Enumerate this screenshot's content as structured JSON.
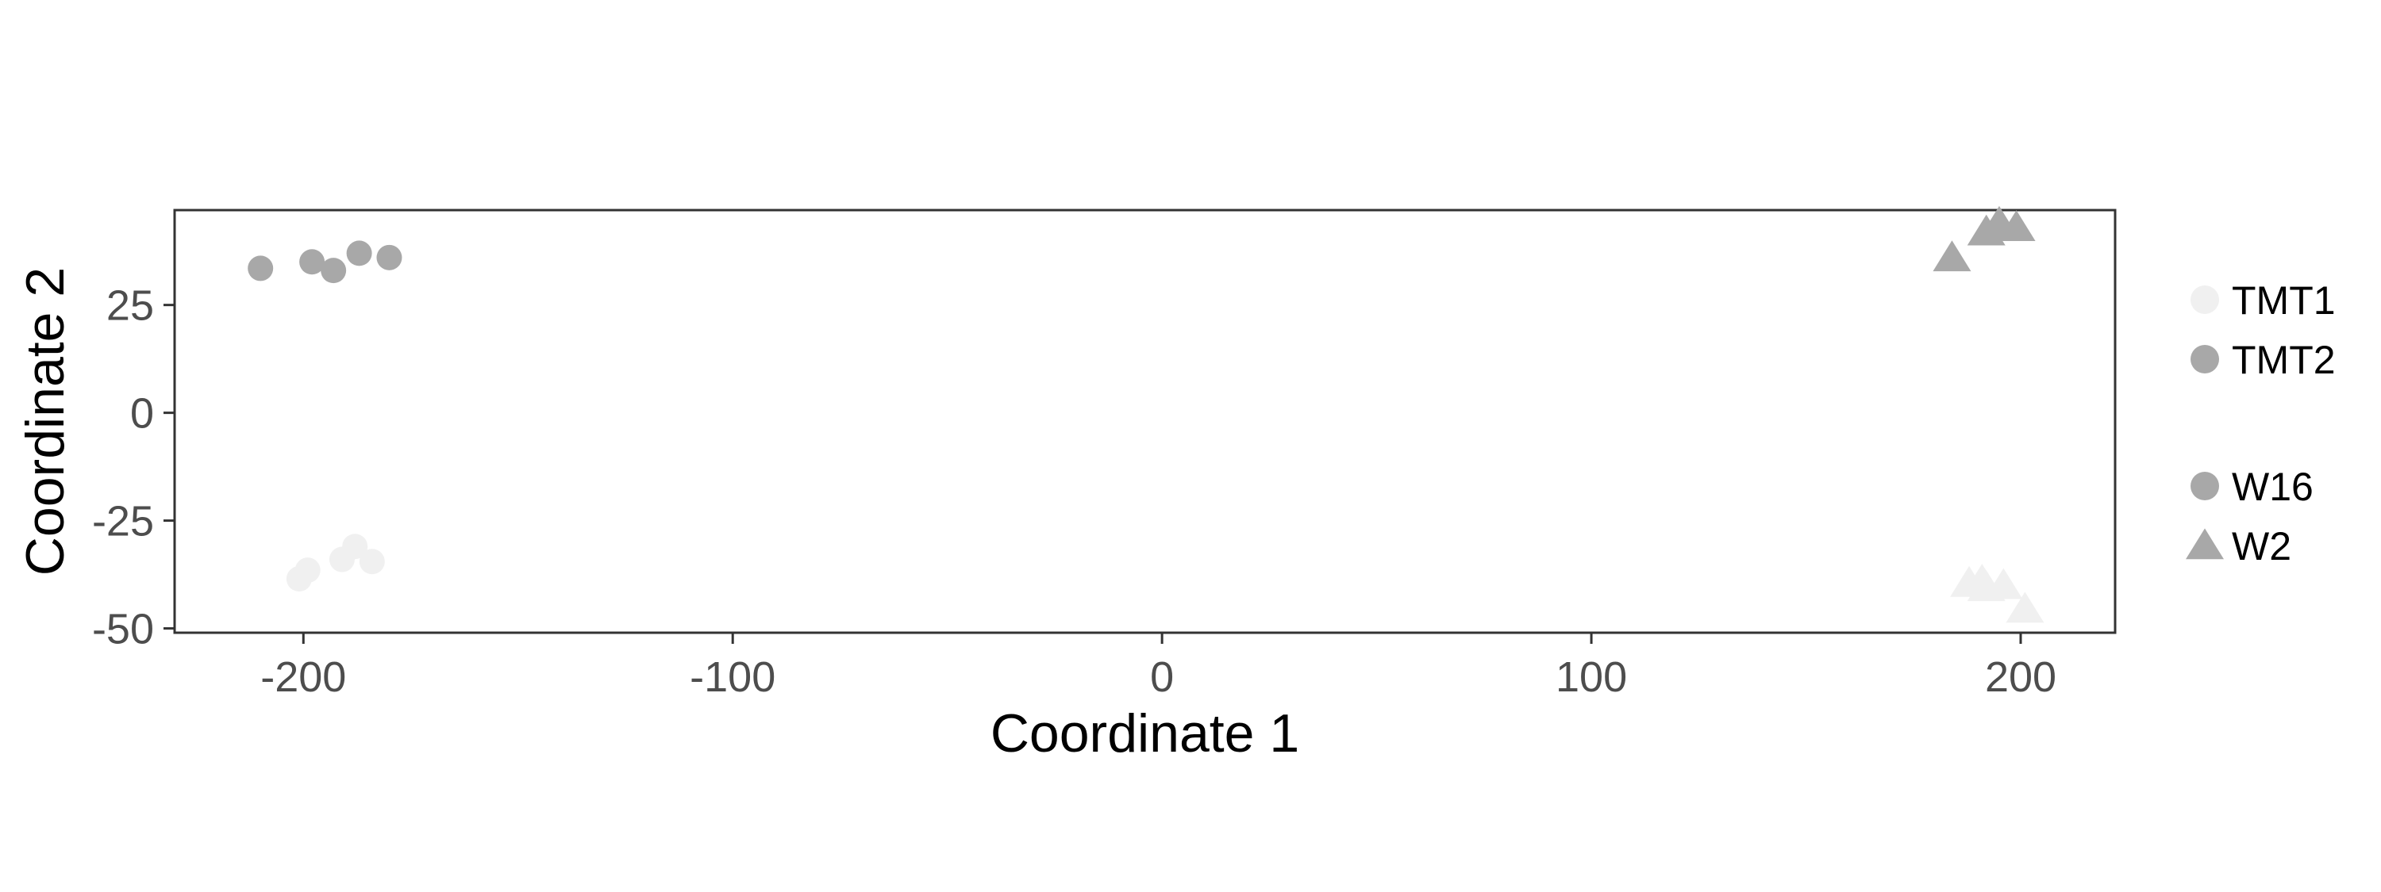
{
  "chart_data": {
    "type": "scatter",
    "title": "",
    "xlabel": "Coordinate 1",
    "ylabel": "Coordinate 2",
    "xlim": [
      -230,
      222
    ],
    "ylim": [
      -51,
      47
    ],
    "x_ticks": [
      -200,
      -100,
      0,
      100,
      200
    ],
    "y_ticks": [
      25,
      0,
      -25,
      -50
    ],
    "x_tick_labels": [
      "-200",
      "-100",
      "0",
      "100",
      "200"
    ],
    "y_tick_labels": [
      "25",
      "0",
      "-25",
      "-50"
    ],
    "grid": false,
    "legend_placement": "right",
    "color_legend": {
      "entries": [
        {
          "label": "TMT1",
          "color": "#f0f0f0"
        },
        {
          "label": "TMT2",
          "color": "#a8a8a8"
        }
      ]
    },
    "shape_legend": {
      "entries": [
        {
          "label": "W16",
          "shape": "circle"
        },
        {
          "label": "W2",
          "shape": "triangle"
        }
      ]
    },
    "points": [
      {
        "x": -210,
        "y": 33.5,
        "color_group": "TMT2",
        "shape_group": "W16"
      },
      {
        "x": -198,
        "y": 35,
        "color_group": "TMT2",
        "shape_group": "W16"
      },
      {
        "x": -193,
        "y": 33,
        "color_group": "TMT2",
        "shape_group": "W16"
      },
      {
        "x": -187,
        "y": 37,
        "color_group": "TMT2",
        "shape_group": "W16"
      },
      {
        "x": -180,
        "y": 36,
        "color_group": "TMT2",
        "shape_group": "W16"
      },
      {
        "x": 184,
        "y": 36,
        "color_group": "TMT2",
        "shape_group": "W2"
      },
      {
        "x": 192,
        "y": 42,
        "color_group": "TMT2",
        "shape_group": "W2"
      },
      {
        "x": 195,
        "y": 44,
        "color_group": "TMT2",
        "shape_group": "W2"
      },
      {
        "x": 199,
        "y": 43,
        "color_group": "TMT2",
        "shape_group": "W2"
      },
      {
        "x": -201,
        "y": -38.5,
        "color_group": "TMT1",
        "shape_group": "W16"
      },
      {
        "x": -199,
        "y": -36.5,
        "color_group": "TMT1",
        "shape_group": "W16"
      },
      {
        "x": -191,
        "y": -34,
        "color_group": "TMT1",
        "shape_group": "W16"
      },
      {
        "x": -188,
        "y": -31,
        "color_group": "TMT1",
        "shape_group": "W16"
      },
      {
        "x": -184,
        "y": -34.5,
        "color_group": "TMT1",
        "shape_group": "W16"
      },
      {
        "x": 188,
        "y": -39.5,
        "color_group": "TMT1",
        "shape_group": "W2"
      },
      {
        "x": 191,
        "y": -39,
        "color_group": "TMT1",
        "shape_group": "W2"
      },
      {
        "x": 192,
        "y": -40.5,
        "color_group": "TMT1",
        "shape_group": "W2"
      },
      {
        "x": 196,
        "y": -40,
        "color_group": "TMT1",
        "shape_group": "W2"
      },
      {
        "x": 201,
        "y": -45.5,
        "color_group": "TMT1",
        "shape_group": "W2"
      }
    ]
  }
}
